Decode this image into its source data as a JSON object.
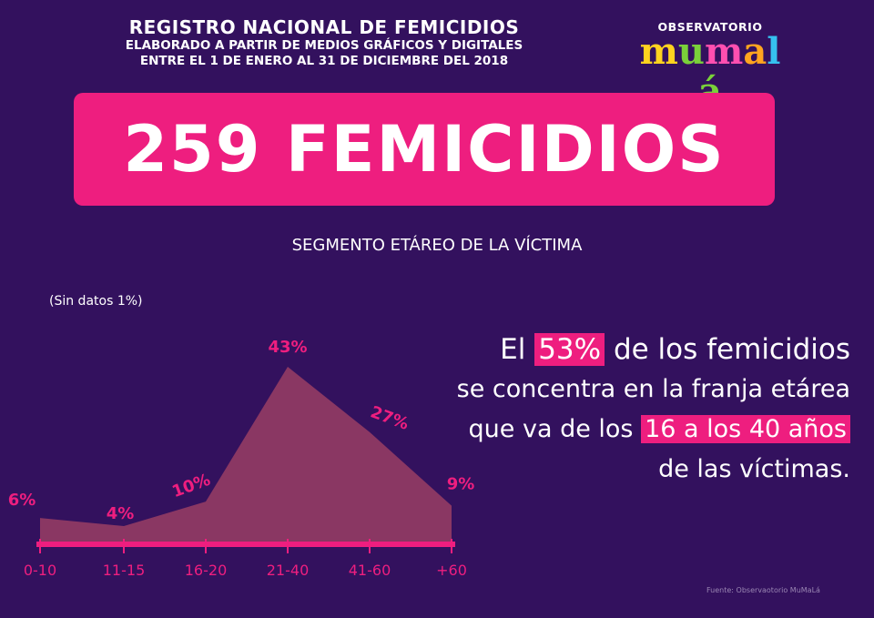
{
  "header": {
    "line1": "REGISTRO NACIONAL DE FEMICIDIOS",
    "line2": "ELABORADO A PARTIR DE MEDIOS GRÁFICOS Y DIGITALES",
    "line3": "ENTRE EL 1 DE ENERO AL 31 DE DICIEMBRE DEL 2018"
  },
  "logo": {
    "top_text": "OBSERVATORIO",
    "letters": [
      "m",
      "u",
      "m",
      "a",
      "l",
      "á"
    ]
  },
  "banner": {
    "text": "259 FEMICIDIOS"
  },
  "subtitle": "SEGMENTO ETÁREO DE LA VÍCTIMA",
  "no_data_note": "(Sin datos 1%)",
  "statement": {
    "l1a": "El ",
    "l1b": "53%",
    "l1c": " de los femicidios",
    "l2": "se concentra en la franja etárea",
    "l3a": "que va de los ",
    "l3b": "16 a los 40 años",
    "l4": "de las víctimas."
  },
  "source": "Fuente: Observaotorio MuMaLá",
  "colors": {
    "background": "#33115e",
    "accent": "#ee1e7f",
    "area": "#8a3763"
  },
  "chart_data": {
    "type": "area",
    "categories": [
      "0-10",
      "11-15",
      "16-20",
      "21-40",
      "41-60",
      "+60"
    ],
    "values": [
      6,
      4,
      10,
      43,
      27,
      9
    ],
    "labels": [
      "6%",
      "4%",
      "10%",
      "43%",
      "27%",
      "9%"
    ],
    "ylim": [
      0,
      45
    ],
    "grid": false
  }
}
